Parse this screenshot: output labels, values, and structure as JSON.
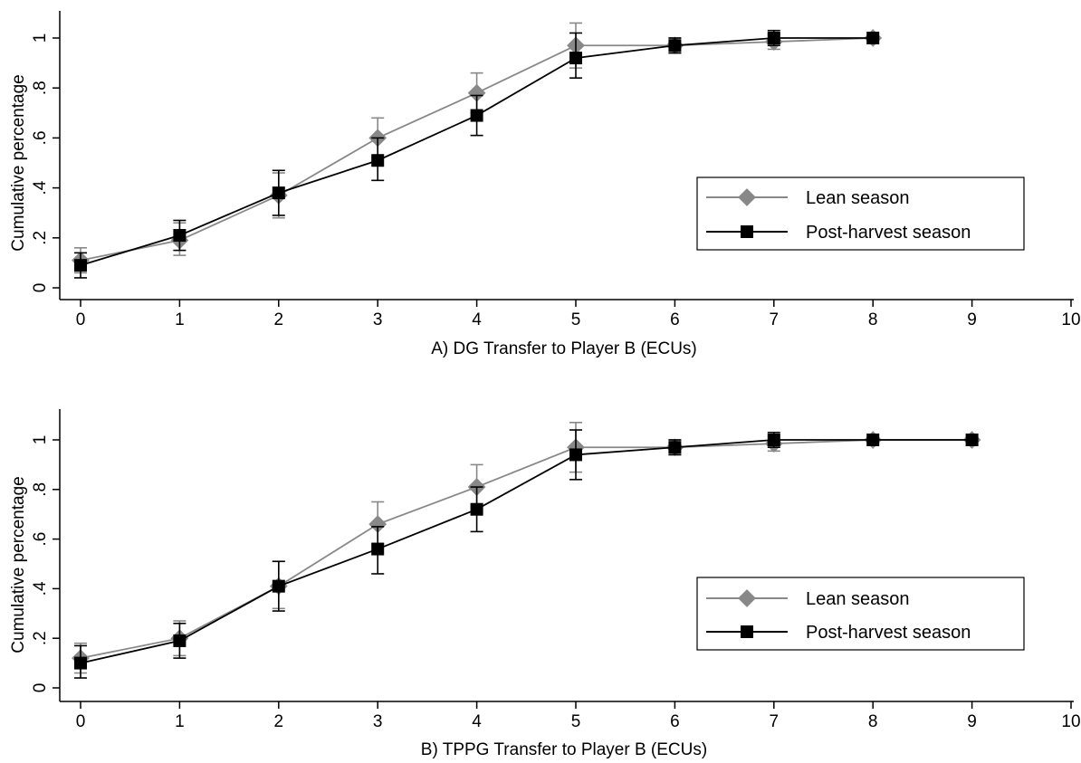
{
  "chart_data": [
    {
      "type": "line",
      "panel": "A",
      "xlabel": "A) DG Transfer to Player B (ECUs)",
      "ylabel": "Cumulative percentage",
      "xlim": [
        0,
        10
      ],
      "ylim": [
        0,
        1
      ],
      "x_ticks": [
        "0",
        "1",
        "2",
        "3",
        "4",
        "5",
        "6",
        "7",
        "8",
        "9",
        "10"
      ],
      "y_ticks": [
        "0",
        ".2",
        ".4",
        ".6",
        ".8",
        "1"
      ],
      "grid": false,
      "legend_position": "right",
      "series": [
        {
          "name": "Lean season",
          "color": "#888888",
          "marker": "diamond",
          "x": [
            0,
            1,
            2,
            3,
            4,
            5,
            6,
            7,
            8
          ],
          "y": [
            0.11,
            0.19,
            0.37,
            0.6,
            0.78,
            0.97,
            0.97,
            0.985,
            1.0
          ],
          "err_low": [
            0.06,
            0.13,
            0.28,
            0.52,
            0.7,
            0.88,
            0.94,
            0.955,
            1.0
          ],
          "err_high": [
            0.16,
            0.26,
            0.46,
            0.68,
            0.86,
            1.06,
            1.0,
            1.015,
            1.0
          ]
        },
        {
          "name": "Post-harvest season",
          "color": "#000000",
          "marker": "square",
          "x": [
            0,
            1,
            2,
            3,
            4,
            5,
            6,
            7,
            8
          ],
          "y": [
            0.09,
            0.21,
            0.38,
            0.51,
            0.69,
            0.92,
            0.97,
            1.0,
            1.0
          ],
          "err_low": [
            0.04,
            0.15,
            0.29,
            0.43,
            0.61,
            0.84,
            0.94,
            0.97,
            1.0
          ],
          "err_high": [
            0.14,
            0.27,
            0.47,
            0.6,
            0.77,
            1.02,
            1.0,
            1.03,
            1.0
          ]
        }
      ]
    },
    {
      "type": "line",
      "panel": "B",
      "xlabel": "B) TPPG Transfer to Player B (ECUs)",
      "ylabel": "Cumulative percentage",
      "xlim": [
        0,
        10
      ],
      "ylim": [
        0,
        1
      ],
      "x_ticks": [
        "0",
        "1",
        "2",
        "3",
        "4",
        "5",
        "6",
        "7",
        "8",
        "9",
        "10"
      ],
      "y_ticks": [
        "0",
        ".2",
        ".4",
        ".6",
        ".8",
        "1"
      ],
      "grid": false,
      "legend_position": "right",
      "series": [
        {
          "name": "Lean season",
          "color": "#888888",
          "marker": "diamond",
          "x": [
            0,
            1,
            2,
            3,
            4,
            5,
            6,
            7,
            8,
            9
          ],
          "y": [
            0.12,
            0.2,
            0.41,
            0.66,
            0.81,
            0.97,
            0.97,
            0.985,
            1.0,
            1.0
          ],
          "err_low": [
            0.06,
            0.13,
            0.32,
            0.58,
            0.73,
            0.87,
            0.94,
            0.955,
            1.0,
            1.0
          ],
          "err_high": [
            0.18,
            0.27,
            0.51,
            0.75,
            0.9,
            1.07,
            1.0,
            1.015,
            1.0,
            1.0
          ]
        },
        {
          "name": "Post-harvest season",
          "color": "#000000",
          "marker": "square",
          "x": [
            0,
            1,
            2,
            3,
            4,
            5,
            6,
            7,
            8,
            9
          ],
          "y": [
            0.1,
            0.19,
            0.41,
            0.56,
            0.72,
            0.94,
            0.97,
            1.0,
            1.0,
            1.0
          ],
          "err_low": [
            0.04,
            0.12,
            0.31,
            0.46,
            0.63,
            0.84,
            0.94,
            0.97,
            1.0,
            1.0
          ],
          "err_high": [
            0.17,
            0.26,
            0.51,
            0.65,
            0.81,
            1.04,
            1.0,
            1.03,
            1.0,
            1.0
          ]
        }
      ]
    }
  ]
}
